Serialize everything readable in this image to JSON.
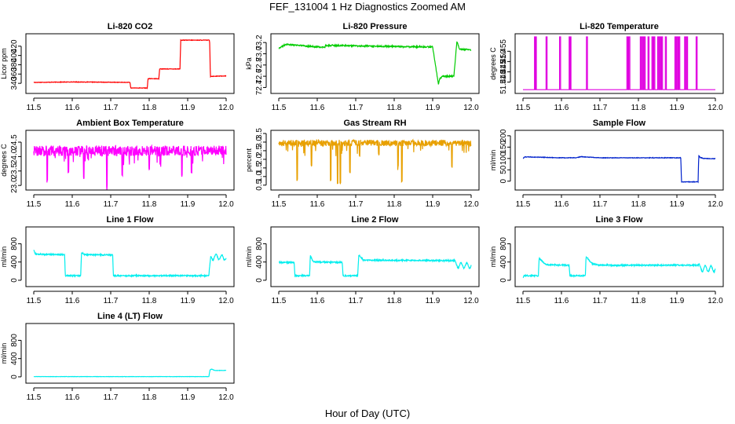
{
  "figure": {
    "title": "FEF_131004  1 Hz Diagnostics Zoomed AM",
    "xlabel": "Hour of Day (UTC)"
  },
  "chart_data": [
    {
      "type": "line",
      "title": "Li-820 CO2",
      "ylabel": "Licor ppm",
      "xlim": [
        11.5,
        12.0
      ],
      "xticks": [
        "11.5",
        "11.6",
        "11.7",
        "11.8",
        "11.9",
        "12.0"
      ],
      "ylim": [
        325,
        440
      ],
      "yticks": [
        "340",
        "360",
        "380",
        "400",
        "420"
      ],
      "color": "#ff0000",
      "noise": 0.5,
      "x": [
        11.5,
        11.6,
        11.75,
        11.752,
        11.795,
        11.797,
        11.825,
        11.827,
        11.88,
        11.882,
        11.957,
        11.959,
        12.0
      ],
      "values": [
        342,
        343,
        342,
        330,
        330,
        350,
        350,
        371,
        371,
        433,
        433,
        355,
        356
      ]
    },
    {
      "type": "line",
      "title": "Li-820 Pressure",
      "ylabel": "kPa",
      "xlim": [
        11.5,
        12.0
      ],
      "xticks": [
        "11.5",
        "11.6",
        "11.7",
        "11.8",
        "11.9",
        "12.0"
      ],
      "ylim": [
        72.35,
        73.3
      ],
      "yticks": [
        "72.4",
        "72.6",
        "72.8",
        "73.0",
        "73.2"
      ],
      "color": "#00cc00",
      "noise": 0.012,
      "x": [
        11.5,
        11.52,
        11.62,
        11.622,
        11.7,
        11.9,
        11.915,
        11.918,
        11.925,
        11.955,
        11.963,
        11.97,
        12.0
      ],
      "values": [
        73.1,
        73.17,
        73.11,
        73.15,
        73.14,
        73.12,
        72.45,
        72.55,
        72.6,
        72.6,
        73.22,
        73.08,
        73.07
      ]
    },
    {
      "type": "line",
      "title": "Li-820 Temperature",
      "ylabel": "degrees C",
      "xlim": [
        11.5,
        12.0
      ],
      "xticks": [
        "11.5",
        "11.6",
        "11.7",
        "11.8",
        "11.9",
        "12.0"
      ],
      "ylim": [
        51.436,
        51.462
      ],
      "yticks": [
        "51.440",
        "51.445",
        "51.450",
        "51.455"
      ],
      "color": "#e000e0",
      "baseline": 51.4363,
      "spike_top": 51.462,
      "spikes": [
        11.53,
        11.532,
        11.56,
        11.595,
        11.62,
        11.622,
        11.665,
        11.77,
        11.775,
        11.805,
        11.81,
        11.815,
        11.825,
        11.835,
        11.84,
        11.85,
        11.855,
        11.86,
        11.87,
        11.895,
        11.9,
        11.905,
        11.92,
        11.925,
        11.95
      ]
    },
    {
      "type": "line",
      "title": "Ambient Box Temperature",
      "ylabel": "degrees C",
      "xlim": [
        11.5,
        12.0
      ],
      "xticks": [
        "11.5",
        "11.6",
        "11.7",
        "11.8",
        "11.9",
        "12.0"
      ],
      "ylim": [
        22.95,
        24.8
      ],
      "yticks": [
        "23.0",
        "23.5",
        "24.0",
        "24.5"
      ],
      "color": "#ff00ff",
      "noise": 0.18,
      "x": [
        11.5,
        12.0
      ],
      "values": [
        24.2,
        24.2
      ],
      "dips": [
        [
          11.535,
          23.1
        ],
        [
          11.59,
          23.4
        ],
        [
          11.63,
          23.2
        ],
        [
          11.69,
          22.95
        ],
        [
          11.73,
          23.3
        ],
        [
          11.8,
          23.5
        ],
        [
          11.885,
          23.3
        ],
        [
          11.91,
          23.4
        ]
      ]
    },
    {
      "type": "line",
      "title": "Gas Stream RH",
      "ylabel": "percent",
      "xlim": [
        11.5,
        12.0
      ],
      "xticks": [
        "11.5",
        "11.6",
        "11.7",
        "11.8",
        "11.9",
        "12.0"
      ],
      "ylim": [
        0.4,
        3.5
      ],
      "yticks": [
        "0.5",
        "1.0",
        "1.5",
        "2.0",
        "2.5",
        "3.0",
        "3.5"
      ],
      "color": "#e8a000",
      "noise": 0.18,
      "x": [
        11.5,
        12.0
      ],
      "values": [
        2.95,
        2.95
      ],
      "dips": [
        [
          11.548,
          0.7
        ],
        [
          11.585,
          1.6
        ],
        [
          11.635,
          0.7
        ],
        [
          11.653,
          0.5
        ],
        [
          11.66,
          0.5
        ],
        [
          11.685,
          1.2
        ],
        [
          11.71,
          2.1
        ],
        [
          11.76,
          2.2
        ],
        [
          11.81,
          1.5
        ],
        [
          11.82,
          0.6
        ],
        [
          11.95,
          1.5
        ]
      ]
    },
    {
      "type": "line",
      "title": "Sample Flow",
      "ylabel": "ml/min",
      "xlim": [
        11.5,
        12.0
      ],
      "xticks": [
        "11.5",
        "11.6",
        "11.7",
        "11.8",
        "11.9",
        "12.0"
      ],
      "ylim": [
        -25,
        210
      ],
      "yticks": [
        "0",
        "50",
        "100",
        "150",
        "200"
      ],
      "color": "#0022cc",
      "noise": 1.2,
      "x": [
        11.5,
        11.505,
        11.6,
        11.64,
        11.65,
        11.7,
        11.8,
        11.91,
        11.912,
        11.955,
        11.957,
        11.96,
        11.97,
        12.0
      ],
      "values": [
        100,
        107,
        103,
        103,
        108,
        103,
        103,
        103,
        -3,
        -3,
        113,
        105,
        100,
        99
      ]
    },
    {
      "type": "line",
      "title": "Line 1 Flow",
      "ylabel": "ml/min",
      "xlim": [
        11.5,
        12.0
      ],
      "xticks": [
        "11.5",
        "11.6",
        "11.7",
        "11.8",
        "11.9",
        "12.0"
      ],
      "ylim": [
        -70,
        1100
      ],
      "yticks": [
        "0",
        "400",
        "800"
      ],
      "color": "#00eeee",
      "noise": 14,
      "x": [
        11.5,
        11.505,
        11.58,
        11.582,
        11.622,
        11.624,
        11.632,
        11.705,
        11.707,
        11.955,
        11.96,
        11.97,
        12.0
      ],
      "values": [
        660,
        570,
        560,
        100,
        100,
        610,
        560,
        555,
        100,
        100,
        470,
        520,
        490
      ],
      "wiggle": [
        [
          11.955,
          12.0,
          55
        ]
      ]
    },
    {
      "type": "line",
      "title": "Line 2 Flow",
      "ylabel": "ml/min",
      "xlim": [
        11.5,
        12.0
      ],
      "xticks": [
        "11.5",
        "11.6",
        "11.7",
        "11.8",
        "11.9",
        "12.0"
      ],
      "ylim": [
        -70,
        1100
      ],
      "yticks": [
        "0",
        "400",
        "800"
      ],
      "color": "#00eeee",
      "noise": 14,
      "x": [
        11.5,
        11.54,
        11.542,
        11.58,
        11.582,
        11.59,
        11.665,
        11.667,
        11.705,
        11.708,
        11.72,
        11.955,
        11.96,
        12.0
      ],
      "values": [
        390,
        390,
        100,
        100,
        540,
        400,
        390,
        100,
        100,
        560,
        440,
        430,
        330,
        320
      ],
      "wiggle": [
        [
          11.955,
          12.0,
          60
        ]
      ]
    },
    {
      "type": "line",
      "title": "Line 3 Flow",
      "ylabel": "ml/min",
      "xlim": [
        11.5,
        12.0
      ],
      "xticks": [
        "11.5",
        "11.6",
        "11.7",
        "11.8",
        "11.9",
        "12.0"
      ],
      "ylim": [
        -70,
        1100
      ],
      "yticks": [
        "0",
        "400",
        "800"
      ],
      "color": "#00eeee",
      "noise": 14,
      "x": [
        11.5,
        11.502,
        11.54,
        11.542,
        11.56,
        11.62,
        11.622,
        11.662,
        11.664,
        11.68,
        11.7,
        11.955,
        11.96,
        12.0
      ],
      "values": [
        60,
        100,
        100,
        480,
        340,
        330,
        100,
        100,
        520,
        360,
        330,
        330,
        260,
        250
      ],
      "wiggle": [
        [
          11.955,
          12.0,
          65
        ]
      ]
    },
    {
      "type": "line",
      "title": "Line 4 (LT) Flow",
      "ylabel": "ml/min",
      "xlim": [
        11.5,
        12.0
      ],
      "xticks": [
        "11.5",
        "11.6",
        "11.7",
        "11.8",
        "11.9",
        "12.0"
      ],
      "ylim": [
        -70,
        1100
      ],
      "yticks": [
        "0",
        "400",
        "800"
      ],
      "color": "#00eeee",
      "noise": 3,
      "x": [
        11.5,
        11.955,
        11.958,
        11.962,
        11.97,
        12.0
      ],
      "values": [
        5,
        5,
        150,
        170,
        140,
        140
      ]
    }
  ]
}
